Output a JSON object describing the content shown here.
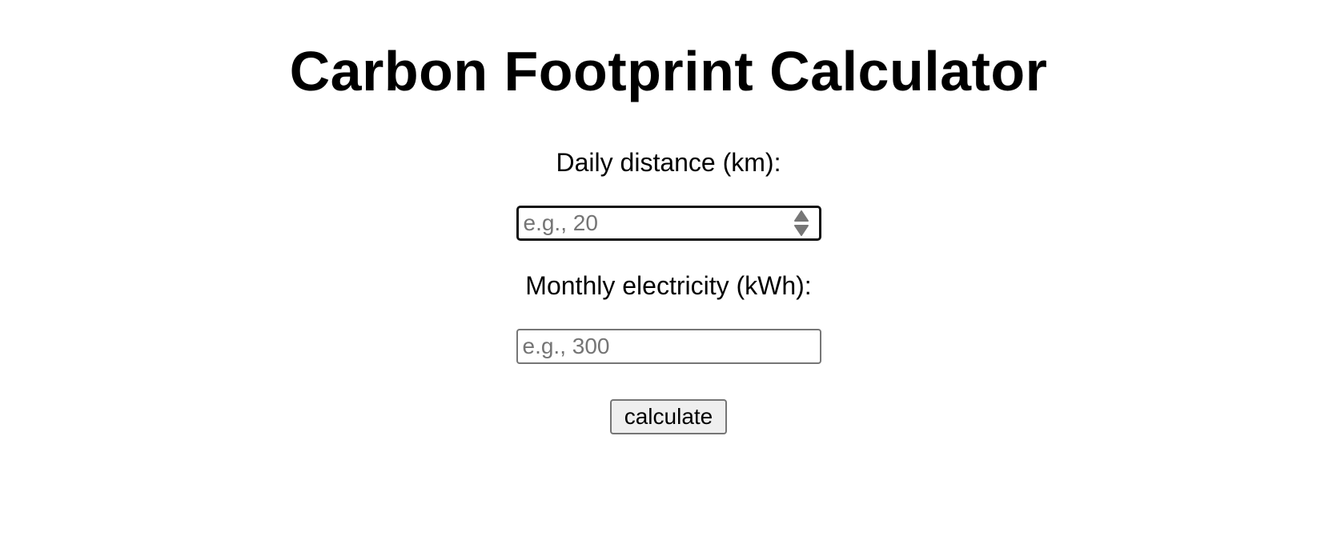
{
  "page": {
    "title": "Carbon Footprint Calculator"
  },
  "form": {
    "distance": {
      "label": "Daily distance (km):",
      "value": "",
      "placeholder": "e.g., 20"
    },
    "electricity": {
      "label": "Monthly electricity (kWh):",
      "value": "",
      "placeholder": "e.g., 300"
    },
    "calculate_label": "calculate"
  },
  "icons": {
    "spinner_up": "spinner-up-icon",
    "spinner_down": "spinner-down-icon"
  },
  "colors": {
    "background": "#ffffff",
    "text": "#000000",
    "placeholder": "#757575",
    "focus_border": "#101010",
    "input_border": "#767676",
    "button_bg": "#efefef"
  }
}
